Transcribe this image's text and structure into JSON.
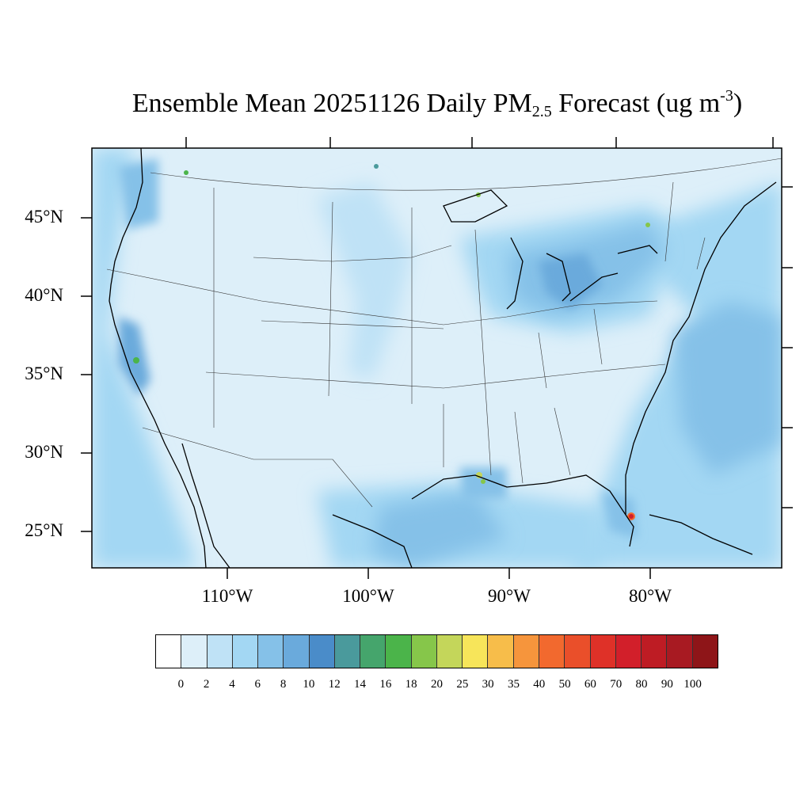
{
  "title": {
    "main": "Ensemble Mean 20251126 Daily PM",
    "subscript": "2.5",
    "suffix": " Forecast (ug m",
    "superscript": "-3",
    "close": ")"
  },
  "latitude_labels": [
    "45°N",
    "40°N",
    "35°N",
    "30°N",
    "25°N"
  ],
  "longitude_labels": [
    "110°W",
    "100°W",
    "90°W",
    "80°W"
  ],
  "colorbar": {
    "levels": [
      "0",
      "2",
      "4",
      "6",
      "8",
      "10",
      "12",
      "14",
      "16",
      "18",
      "20",
      "25",
      "30",
      "35",
      "40",
      "50",
      "60",
      "70",
      "80",
      "90",
      "100"
    ],
    "colors": [
      "#ffffff",
      "#ddeff9",
      "#bfe2f6",
      "#a3d7f3",
      "#85c1e8",
      "#6aaadc",
      "#4a8cc9",
      "#4a9a9c",
      "#45a56c",
      "#4bb44a",
      "#86c64a",
      "#c4d65a",
      "#f7e55a",
      "#f7bd4a",
      "#f6953c",
      "#f2692e",
      "#ea4f2a",
      "#df3128",
      "#d21f2a",
      "#be1c24",
      "#a81a22",
      "#8e1518"
    ]
  }
}
